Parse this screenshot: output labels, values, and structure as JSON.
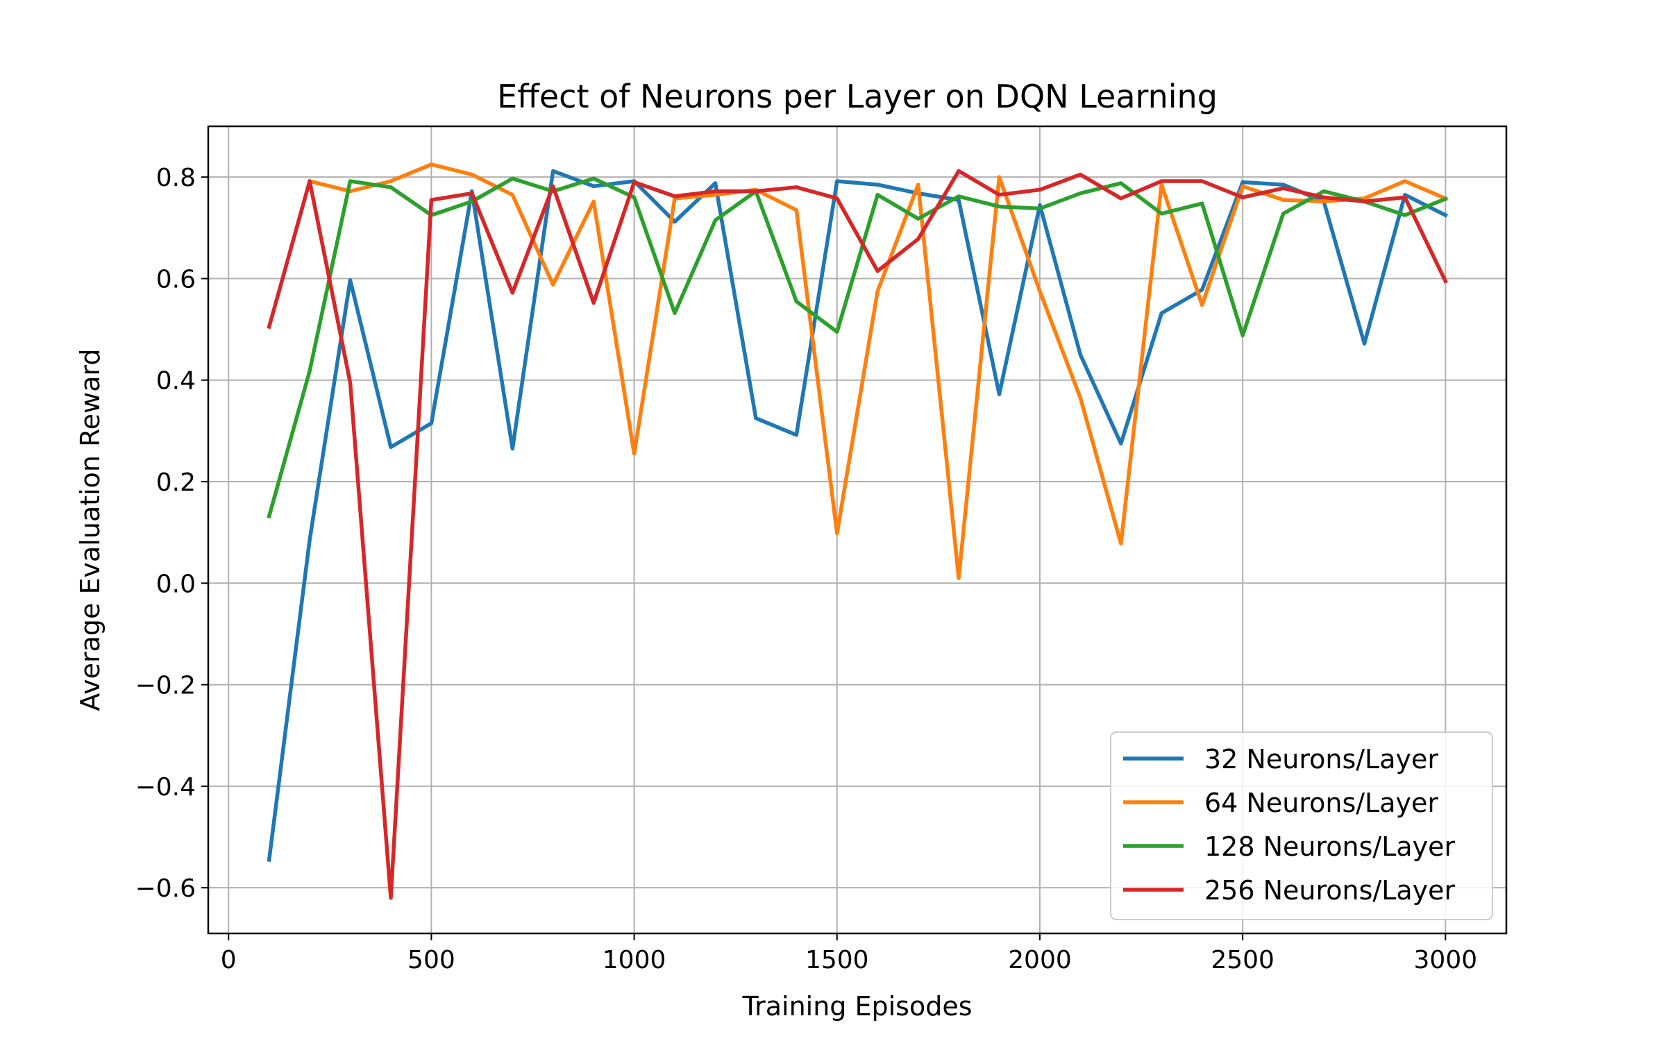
{
  "chart_data": {
    "type": "line",
    "title": "Effect of Neurons per Layer on DQN Learning",
    "xlabel": "Training Episodes",
    "ylabel": "Average Evaluation Reward",
    "xlim": [
      -50,
      3150
    ],
    "ylim": [
      -0.69,
      0.9
    ],
    "xticks": [
      0,
      500,
      1000,
      1500,
      2000,
      2500,
      3000
    ],
    "xtick_labels": [
      "0",
      "500",
      "1000",
      "1500",
      "2000",
      "2500",
      "3000"
    ],
    "yticks": [
      -0.6,
      -0.4,
      -0.2,
      0.0,
      0.2,
      0.4,
      0.6,
      0.8
    ],
    "ytick_labels": [
      "−0.6",
      "−0.4",
      "−0.2",
      "0.0",
      "0.2",
      "0.4",
      "0.6",
      "0.8"
    ],
    "grid": true,
    "legend_position": "bottom-right",
    "x": [
      100,
      200,
      300,
      400,
      500,
      600,
      700,
      800,
      900,
      1000,
      1100,
      1200,
      1300,
      1400,
      1500,
      1600,
      1700,
      1800,
      1900,
      2000,
      2100,
      2200,
      2300,
      2400,
      2500,
      2600,
      2700,
      2800,
      2900,
      3000
    ],
    "series": [
      {
        "name": "32 Neurons/Layer",
        "color": "#1f77b4",
        "values": [
          -0.545,
          0.085,
          0.597,
          0.268,
          0.315,
          0.772,
          0.265,
          0.812,
          0.782,
          0.792,
          0.712,
          0.788,
          0.325,
          0.292,
          0.792,
          0.785,
          0.768,
          0.755,
          0.372,
          0.745,
          0.45,
          0.275,
          0.532,
          0.578,
          0.79,
          0.785,
          0.752,
          0.472,
          0.765,
          0.725
        ]
      },
      {
        "name": "64 Neurons/Layer",
        "color": "#ff7f0e",
        "values": [
          null,
          0.792,
          0.772,
          0.792,
          0.825,
          0.805,
          0.765,
          0.588,
          0.752,
          0.255,
          0.758,
          0.765,
          0.775,
          0.735,
          0.098,
          0.575,
          0.785,
          0.01,
          0.8,
          0.575,
          0.365,
          0.078,
          0.785,
          0.548,
          0.782,
          0.755,
          0.752,
          0.758,
          0.792,
          0.758
        ]
      },
      {
        "name": "128 Neurons/Layer",
        "color": "#2ca02c",
        "values": [
          0.132,
          0.418,
          0.792,
          0.78,
          0.725,
          0.752,
          0.797,
          0.772,
          0.797,
          0.76,
          0.532,
          0.715,
          0.772,
          0.555,
          0.495,
          0.765,
          0.718,
          0.762,
          0.742,
          0.738,
          0.768,
          0.788,
          0.728,
          0.748,
          0.488,
          0.728,
          0.772,
          0.752,
          0.725,
          0.757
        ]
      },
      {
        "name": "256 Neurons/Layer",
        "color": "#d62728",
        "values": [
          0.505,
          0.792,
          0.395,
          -0.62,
          0.755,
          0.768,
          0.572,
          0.782,
          0.552,
          0.79,
          0.762,
          0.772,
          0.772,
          0.78,
          0.758,
          0.615,
          0.678,
          0.812,
          0.765,
          0.775,
          0.805,
          0.758,
          0.792,
          0.792,
          0.76,
          0.778,
          0.76,
          0.752,
          0.76,
          0.595
        ]
      }
    ]
  }
}
